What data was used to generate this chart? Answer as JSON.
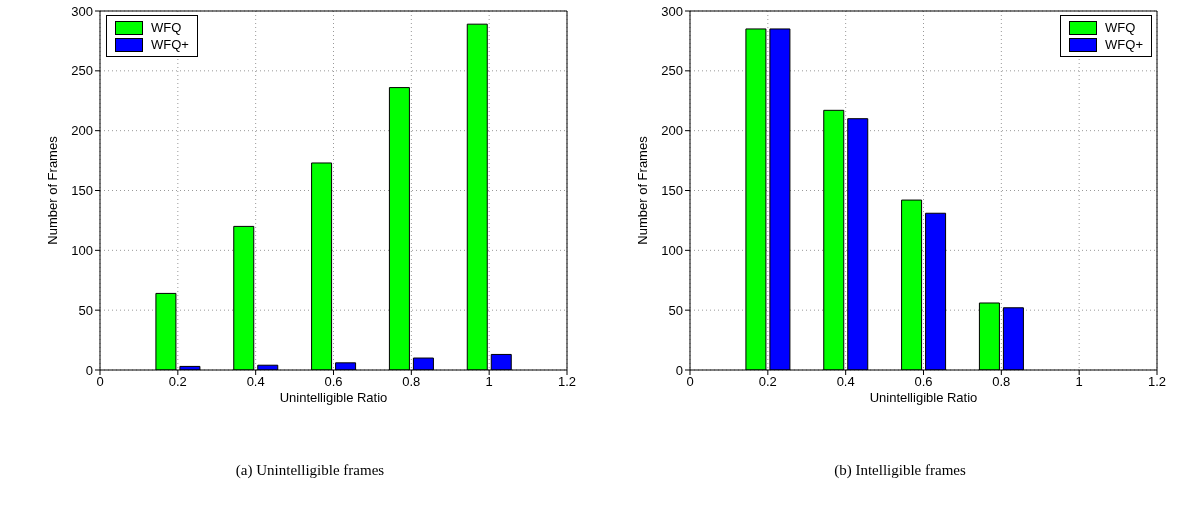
{
  "chart_data": [
    {
      "type": "bar",
      "x": [
        0.2,
        0.4,
        0.6,
        0.8,
        1
      ],
      "xlabel": "Unintelligible Ratio",
      "ylabel": "Number of Frames",
      "xlim": [
        0,
        1.2
      ],
      "xticks": [
        0,
        0.2,
        0.4,
        0.6,
        0.8,
        1,
        1.2
      ],
      "ylim": [
        0,
        300
      ],
      "yticks": [
        0,
        50,
        100,
        150,
        200,
        250,
        300
      ],
      "grid": true,
      "legend": "top left",
      "series": [
        {
          "name": "WFQ",
          "color": "#00ff00",
          "values": [
            64,
            120,
            173,
            236,
            289
          ]
        },
        {
          "name": "WFQ+",
          "color": "#0000ff",
          "values": [
            3,
            4,
            6,
            10,
            13
          ]
        }
      ],
      "annotations": [
        "(a) Unintelligible frames"
      ]
    },
    {
      "type": "bar",
      "x": [
        0.2,
        0.4,
        0.6,
        0.8,
        1
      ],
      "xlabel": "Unintelligible Ratio",
      "ylabel": "Number of Frames",
      "xlim": [
        0,
        1.2
      ],
      "xticks": [
        0,
        0.2,
        0.4,
        0.6,
        0.8,
        1,
        1.2
      ],
      "ylim": [
        0,
        300
      ],
      "yticks": [
        0,
        50,
        100,
        150,
        200,
        250,
        300
      ],
      "grid": true,
      "legend": "top right",
      "series": [
        {
          "name": "WFQ",
          "color": "#00ff00",
          "values": [
            285,
            217,
            142,
            56,
            0
          ]
        },
        {
          "name": "WFQ+",
          "color": "#0000ff",
          "values": [
            285,
            210,
            131,
            52,
            0
          ]
        }
      ],
      "annotations": [
        "(b) Intelligible frames"
      ]
    }
  ]
}
